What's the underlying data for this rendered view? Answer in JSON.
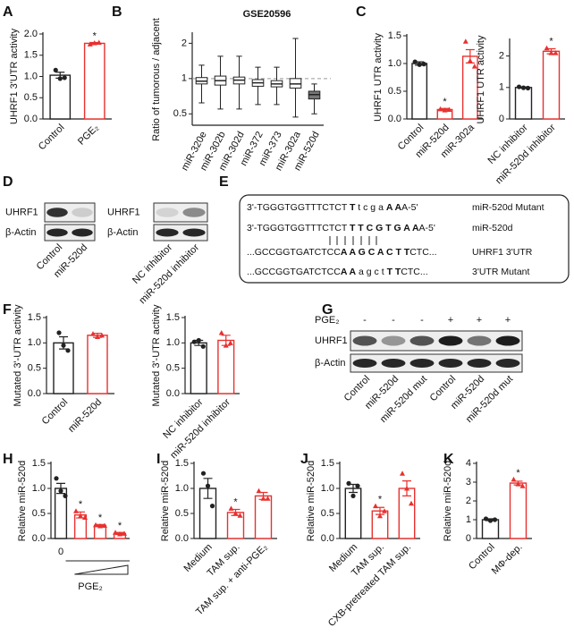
{
  "chart_data": [
    {
      "type": "bar",
      "panel": "A",
      "ylabel": "UHRF1 3'UTR activity",
      "categories": [
        "Control",
        "PGE₂"
      ],
      "values": [
        1.03,
        1.78
      ],
      "errors": [
        0.07,
        0.02
      ],
      "points": [
        [
          1.15,
          0.95,
          0.97
        ],
        [
          1.76,
          1.79,
          1.8
        ]
      ],
      "significance": [
        null,
        "*"
      ],
      "colors": [
        "#222222",
        "#e8312f"
      ],
      "ylim": [
        0,
        2
      ],
      "yticks": [
        {
          "value": 0,
          "label": "0.0"
        },
        0.5,
        {
          "value": 1,
          "label": "1.0"
        },
        1.5,
        {
          "value": 2,
          "label": "2.0"
        }
      ]
    },
    {
      "type": "box",
      "panel": "B",
      "title": "GSE20596",
      "ylabel": "Ratio of tumorous / adjacent",
      "log_scale": true,
      "reference_line": 1,
      "categories": [
        "miR-320e",
        "miR-302b",
        "miR-302d",
        "miR-372",
        "miR-373",
        "miR-302a",
        "miR-520d"
      ],
      "min": [
        0.62,
        0.55,
        0.55,
        0.6,
        0.6,
        0.47,
        0.5
      ],
      "q1": [
        0.9,
        0.88,
        0.9,
        0.86,
        0.85,
        0.83,
        0.67
      ],
      "median": [
        0.95,
        0.96,
        0.97,
        0.92,
        0.9,
        0.9,
        0.73
      ],
      "q3": [
        1.02,
        1.05,
        1.03,
        0.98,
        0.96,
        1.0,
        0.78
      ],
      "max": [
        1.3,
        1.55,
        1.55,
        1.25,
        1.25,
        2.2,
        0.9
      ],
      "colors": [
        "#ffffff",
        "#ffffff",
        "#ffffff",
        "#ffffff",
        "#ffffff",
        "#ffffff",
        "#777777"
      ],
      "ylim": [
        0.4,
        2.4
      ],
      "yticks": [
        0.5,
        1,
        2
      ]
    },
    {
      "type": "bar",
      "panel": "C",
      "ylabel": "UHRF1 UTR activity",
      "categories": [
        "Control",
        "miR-520d",
        "miR-302a"
      ],
      "values": [
        1.0,
        0.17,
        1.13
      ],
      "errors": [
        0.03,
        0.02,
        0.12
      ],
      "points": [
        [
          1.03,
          0.98,
          0.99
        ],
        [
          0.18,
          0.16,
          0.17
        ],
        [
          1.4,
          1.05,
          0.95
        ]
      ],
      "significance": [
        null,
        "*",
        null
      ],
      "colors": [
        "#222222",
        "#e8312f",
        "#e8312f"
      ],
      "ylim": [
        0,
        1.5
      ],
      "yticks": [
        {
          "value": 0,
          "label": "0.0"
        },
        0.5,
        {
          "value": 1,
          "label": "1.0"
        },
        1.5
      ]
    },
    {
      "type": "bar",
      "ylabel": "UHRF1 UTR activity",
      "categories": [
        "NC inhibitor",
        "miR-520d inhibitor"
      ],
      "values": [
        1.0,
        2.15
      ],
      "errors": [
        0.02,
        0.08
      ],
      "points": [
        [
          1.02,
          0.99,
          0.98
        ],
        [
          2.25,
          2.1,
          2.1
        ]
      ],
      "significance": [
        null,
        "*"
      ],
      "colors": [
        "#222222",
        "#e8312f"
      ],
      "ylim": [
        0,
        2.5
      ],
      "yticks": [
        0,
        1,
        2
      ]
    },
    {
      "type": "bar",
      "panel": "F",
      "ylabel": "Mutated 3'-UTR activity",
      "categories": [
        "Control",
        "miR-520d"
      ],
      "values": [
        1.0,
        1.15
      ],
      "errors": [
        0.12,
        0.04
      ],
      "points": [
        [
          1.2,
          0.95,
          0.85
        ],
        [
          1.18,
          1.12,
          1.15
        ]
      ],
      "significance": [
        null,
        null
      ],
      "colors": [
        "#222222",
        "#e8312f"
      ],
      "ylim": [
        0,
        1.5
      ],
      "yticks": [
        {
          "value": 0,
          "label": "0.0"
        },
        0.5,
        {
          "value": 1,
          "label": "1.0"
        },
        1.5
      ]
    },
    {
      "type": "bar",
      "ylabel": "Mutated 3'-UTR activity",
      "categories": [
        "NC inhibitor",
        "miR-520d inhibitor"
      ],
      "values": [
        1.0,
        1.05
      ],
      "errors": [
        0.05,
        0.1
      ],
      "points": [
        [
          1.02,
          1.05,
          0.93
        ],
        [
          1.2,
          0.95,
          1.0
        ]
      ],
      "significance": [
        null,
        null
      ],
      "colors": [
        "#222222",
        "#e8312f"
      ],
      "ylim": [
        0,
        1.5
      ],
      "yticks": [
        {
          "value": 0,
          "label": "0.0"
        },
        0.5,
        {
          "value": 1,
          "label": "1.0"
        },
        1.5
      ]
    },
    {
      "type": "bar",
      "panel": "H",
      "ylabel": "Relative miR-520d",
      "xlabel": "PGE₂",
      "categories": [
        "0",
        null,
        null,
        null
      ],
      "values": [
        1.0,
        0.47,
        0.26,
        0.1
      ],
      "errors": [
        0.1,
        0.06,
        0.02,
        0.02
      ],
      "points": [
        [
          1.2,
          0.95,
          0.85
        ],
        [
          0.55,
          0.45,
          0.42
        ],
        [
          0.27,
          0.25,
          0.26
        ],
        [
          0.12,
          0.09,
          0.1
        ]
      ],
      "significance": [
        null,
        "*",
        "*",
        "*"
      ],
      "colors": [
        "#222222",
        "#e8312f",
        "#e8312f",
        "#e8312f"
      ],
      "ylim": [
        0,
        1.5
      ],
      "yticks": [
        {
          "value": 0,
          "label": "0.0"
        },
        0.5,
        {
          "value": 1,
          "label": "1.0"
        },
        1.5
      ]
    },
    {
      "type": "bar",
      "panel": "I",
      "ylabel": "Relative miR-520d",
      "categories": [
        "Medium",
        "TAM sup.",
        "TAM sup. + anti-PGE₂"
      ],
      "values": [
        1.0,
        0.52,
        0.85
      ],
      "errors": [
        0.2,
        0.06,
        0.07
      ],
      "points": [
        [
          1.3,
          1.05,
          0.65
        ],
        [
          0.6,
          0.5,
          0.46
        ],
        [
          0.95,
          0.8,
          0.8
        ]
      ],
      "significance": [
        null,
        "*",
        null
      ],
      "colors": [
        "#222222",
        "#e8312f",
        "#e8312f"
      ],
      "ylim": [
        0,
        1.5
      ],
      "yticks": [
        {
          "value": 0,
          "label": "0.0"
        },
        0.5,
        {
          "value": 1,
          "label": "1.0"
        },
        1.5
      ]
    },
    {
      "type": "bar",
      "panel": "J",
      "ylabel": "Relative miR-520d",
      "categories": [
        "Medium",
        "TAM sup.",
        "CXB-pretreated TAM sup."
      ],
      "values": [
        1.0,
        0.55,
        1.0
      ],
      "errors": [
        0.08,
        0.07,
        0.15
      ],
      "points": [
        [
          1.1,
          0.85,
          1.05
        ],
        [
          0.65,
          0.45,
          0.55
        ],
        [
          1.3,
          1.0,
          0.7
        ]
      ],
      "significance": [
        null,
        "*",
        null
      ],
      "colors": [
        "#222222",
        "#e8312f",
        "#e8312f"
      ],
      "ylim": [
        0,
        1.5
      ],
      "yticks": [
        {
          "value": 0,
          "label": "0.0"
        },
        0.5,
        {
          "value": 1,
          "label": "1.0"
        },
        1.5
      ]
    },
    {
      "type": "bar",
      "panel": "K",
      "ylabel": "Relative miR-520d",
      "categories": [
        "Control",
        "MΦ-dep."
      ],
      "values": [
        1.0,
        2.95
      ],
      "errors": [
        0.05,
        0.1
      ],
      "points": [
        [
          1.05,
          0.95,
          1.0
        ],
        [
          3.15,
          2.9,
          2.8
        ]
      ],
      "significance": [
        null,
        "*"
      ],
      "colors": [
        "#222222",
        "#e8312f"
      ],
      "ylim": [
        0,
        4
      ],
      "yticks": [
        0,
        1,
        2,
        3,
        4
      ]
    }
  ],
  "figure": {
    "D": {
      "panel": "D",
      "blots": [
        {
          "rows": [
            "UHRF1",
            "β-Actin"
          ],
          "lanes": [
            "Control",
            "miR-520d"
          ]
        },
        {
          "rows": [
            "UHRF1",
            "β-Actin"
          ],
          "lanes": [
            "NC inhibitor",
            "miR-520d inhibitor"
          ]
        }
      ]
    },
    "E": {
      "panel": "E",
      "rows": [
        {
          "segments": [
            {
              "text": "3'-TGGGTGGTTTCTCT ",
              "bold": false
            },
            {
              "text": "T",
              "bold": true
            },
            {
              "text": " t c g a ",
              "bold": false
            },
            {
              "text": "A A",
              "bold": true
            },
            {
              "text": "A-5'",
              "bold": false
            }
          ],
          "label": "miR-520d Mutant"
        },
        {
          "segments": [
            {
              "text": "3'-TGGGTGGTTTCTCT ",
              "bold": false
            },
            {
              "text": "T T C G T G A A",
              "bold": true
            },
            {
              "text": "A-5'",
              "bold": false
            }
          ],
          "label": "miR-520d"
        },
        {
          "segments": [
            {
              "text": "...GCCGGTGATCTCC",
              "bold": false
            },
            {
              "text": "A A G C A C T T",
              "bold": true
            },
            {
              "text": "CTC...",
              "bold": false
            }
          ],
          "label": "UHRF1 3'UTR"
        },
        {
          "segments": [
            {
              "text": "...GCCGGTGATCTCC",
              "bold": false
            },
            {
              "text": "A A",
              "bold": true
            },
            {
              "text": " a g c t ",
              "bold": false
            },
            {
              "text": "T T",
              "bold": true
            },
            {
              "text": "CTC...",
              "bold": false
            }
          ],
          "label": "3'UTR Mutant"
        }
      ]
    },
    "G": {
      "panel": "G",
      "treatment": "PGE₂",
      "signs": [
        "-",
        "-",
        "-",
        "+",
        "+",
        "+"
      ],
      "rows": [
        "UHRF1",
        "β-Actin"
      ],
      "lanes": [
        "Control",
        "miR-520d",
        "miR-520d mut",
        "Control",
        "miR-520d",
        "miR-520d mut"
      ]
    }
  }
}
